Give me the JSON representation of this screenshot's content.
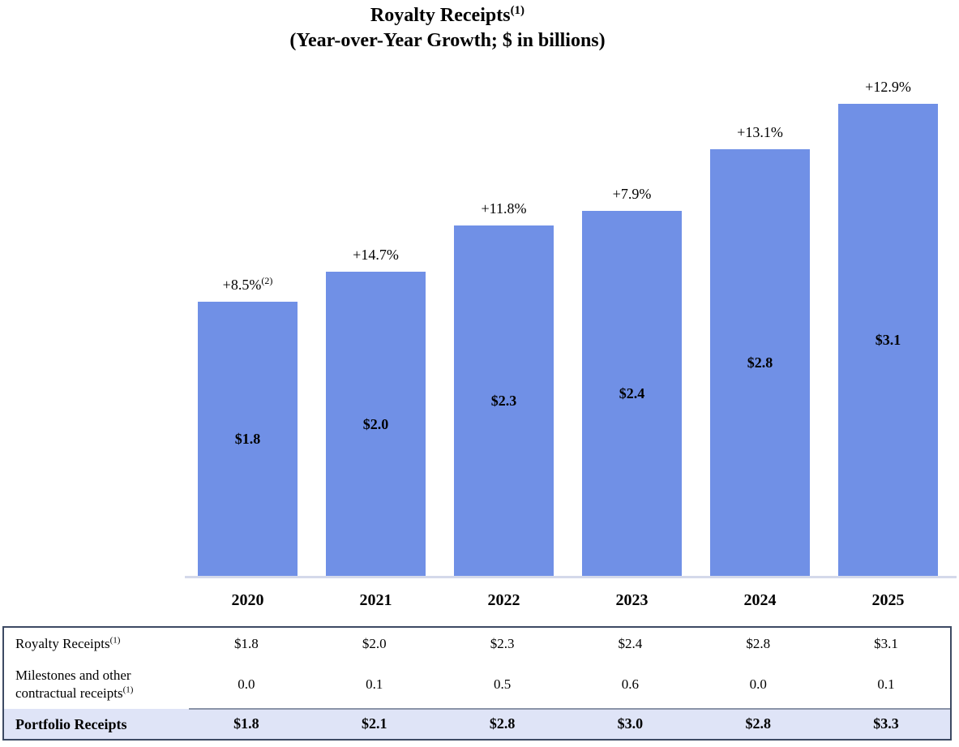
{
  "title": {
    "main": "Royalty Receipts",
    "sup": "(1)",
    "subtitle": "(Year-over-Year Growth; $ in billions)"
  },
  "chart_data": {
    "type": "bar",
    "title": "Royalty Receipts(1)",
    "subtitle": "(Year-over-Year Growth; $ in billions)",
    "xlabel": "",
    "ylabel": "",
    "grid": false,
    "legend": false,
    "ylim": [
      0,
      3.4
    ],
    "categories": [
      "2020",
      "2021",
      "2022",
      "2023",
      "2024",
      "2025"
    ],
    "values": [
      1.8,
      2.0,
      2.3,
      2.4,
      2.8,
      3.1
    ],
    "bar_labels": [
      "$1.8",
      "$2.0",
      "$2.3",
      "$2.4",
      "$2.8",
      "$3.1"
    ],
    "growth_labels": [
      "+8.5%",
      "+14.7%",
      "+11.8%",
      "+7.9%",
      "+13.1%",
      "+12.9%"
    ],
    "growth_sups": [
      "(2)",
      "",
      "",
      "",
      "",
      ""
    ],
    "bar_color": "#7090E6",
    "axis_line_color": "#D4D9EA"
  },
  "table": {
    "rows": [
      {
        "label": "Royalty Receipts",
        "label_sup": "(1)",
        "values": [
          "$1.8",
          "$2.0",
          "$2.3",
          "$2.4",
          "$2.8",
          "$3.1"
        ],
        "highlighted": false
      },
      {
        "label": "Milestones and other contractual receipts",
        "label_sup": "(1)",
        "values": [
          "0.0",
          "0.1",
          "0.5",
          "0.6",
          "0.0",
          "0.1"
        ],
        "highlighted": false
      },
      {
        "label": "Portfolio Receipts",
        "label_sup": "",
        "values": [
          "$1.8",
          "$2.1",
          "$2.8",
          "$3.0",
          "$2.8",
          "$3.3"
        ],
        "highlighted": true
      }
    ],
    "highlight_color": "#DFE4F7",
    "border_color": "#3D4A63",
    "sum_rule_color": "#8A93A8"
  }
}
